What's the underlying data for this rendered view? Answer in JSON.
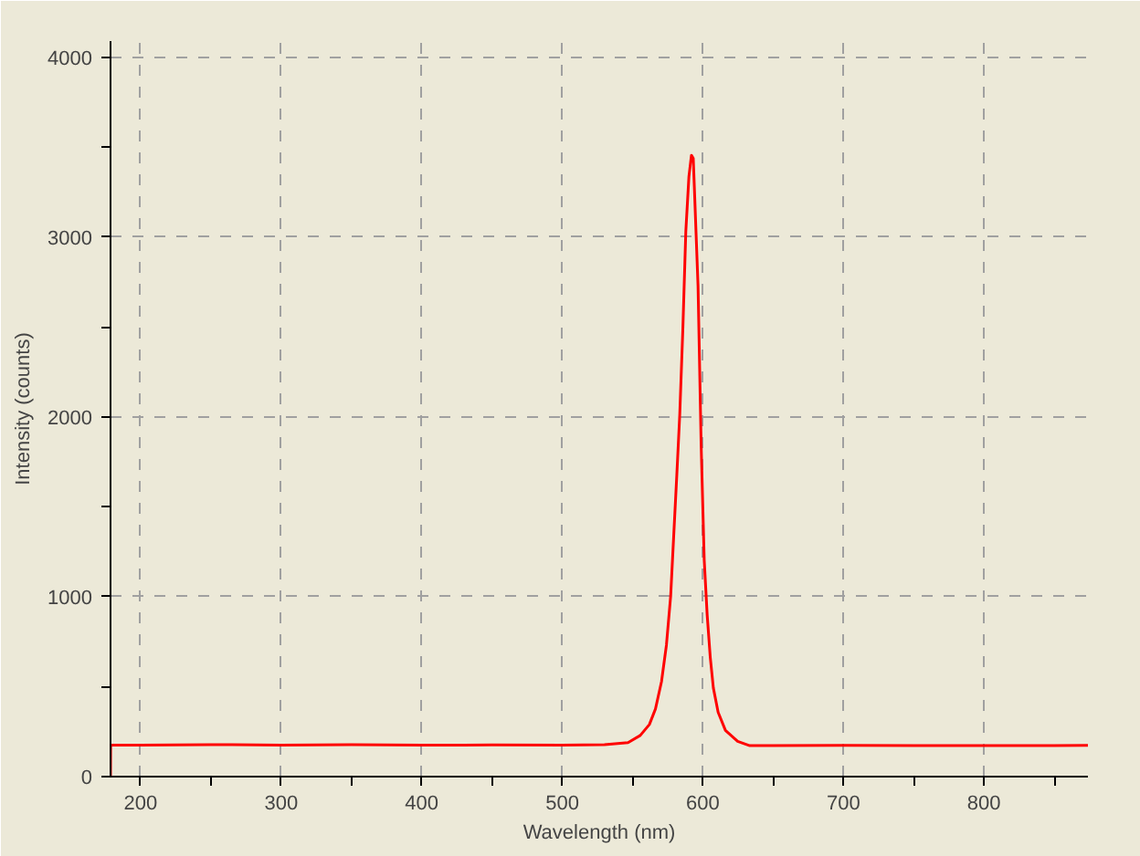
{
  "chart_data": {
    "type": "line",
    "xlabel": "Wavelength (nm)",
    "ylabel": "Intensity (counts)",
    "xlim": [
      178.6,
      874
    ],
    "ylim": [
      0,
      4090
    ],
    "xticks": [
      200,
      {
        "value": 250,
        "label": null
      },
      300,
      {
        "value": 350,
        "label": null
      },
      400,
      {
        "value": 450,
        "label": null
      },
      500,
      {
        "value": 550,
        "label": null
      },
      600,
      {
        "value": 650,
        "label": null
      },
      700,
      {
        "value": 750,
        "label": null
      },
      800,
      {
        "value": 850,
        "label": null
      }
    ],
    "yticks": [
      0,
      {
        "value": 500,
        "label": null
      },
      1000,
      {
        "value": 1500,
        "label": null
      },
      2000,
      {
        "value": 2500,
        "label": null
      },
      3000,
      {
        "value": 3500,
        "label": null
      },
      4000
    ],
    "grid": true,
    "line_style": "solid",
    "marker": "none",
    "series": [
      {
        "color": "#ff0000",
        "x": [
          178.6,
          178.7,
          200,
          250,
          300,
          350,
          400,
          450,
          500,
          530,
          546.8,
          555.5,
          562,
          566.3,
          570.6,
          574.1,
          577.1,
          579.3,
          581.5,
          583.6,
          585.8,
          587.9,
          590.1,
          591.9,
          593.2,
          594.5,
          596.6,
          598.8,
          601,
          603.1,
          605.3,
          607.5,
          610.9,
          616.1,
          624.8,
          633.4,
          650,
          700,
          750,
          800,
          850,
          874
        ],
        "values": [
          0,
          175,
          175,
          178,
          175,
          177,
          175,
          176,
          175,
          178,
          189,
          229,
          290,
          376,
          528,
          731,
          1001,
          1340,
          1678,
          2016,
          2490,
          3031,
          3336,
          3455,
          3438,
          3167,
          2727,
          1848,
          1204,
          899,
          663,
          493,
          358,
          257,
          196,
          172,
          172,
          174,
          172,
          173,
          172,
          174
        ]
      }
    ]
  }
}
